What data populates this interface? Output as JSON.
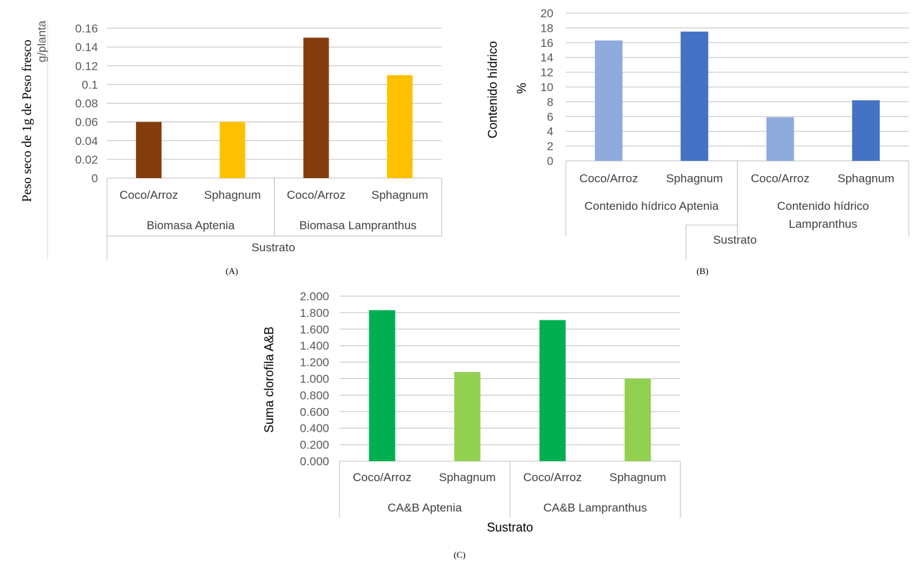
{
  "chart_data": [
    {
      "type": "bar",
      "panel_label": "(A)",
      "ylabel": "Peso seco de 1g de Peso fresco",
      "ylabel_unit": "g/planta",
      "xlabel": "Sustrato",
      "ylim": [
        0,
        0.16
      ],
      "yticks": [
        "0",
        "0.02",
        "0.04",
        "0.06",
        "0.08",
        "0.1",
        "0.12",
        "0.14",
        "0.16"
      ],
      "categories": [
        "Coco/Arroz",
        "Sphagnum",
        "Coco/Arroz",
        "Sphagnum"
      ],
      "groups": [
        "Biomasa  Aptenia",
        "Biomasa  Lampranthus"
      ],
      "values": [
        0.06,
        0.06,
        0.15,
        0.11
      ],
      "colors": [
        "#843C0C",
        "#FFC000",
        "#843C0C",
        "#FFC000"
      ],
      "grid": true,
      "legend": "none"
    },
    {
      "type": "bar",
      "panel_label": "(B)",
      "ylabel": "Contenido hídrico",
      "ylabel_unit": "%",
      "xlabel": "Sustrato",
      "ylim": [
        0,
        20
      ],
      "yticks": [
        "0",
        "2",
        "4",
        "6",
        "8",
        "10",
        "12",
        "14",
        "16",
        "18",
        "20"
      ],
      "categories": [
        "Coco/Arroz",
        "Sphagnum",
        "Coco/Arroz",
        "Sphagnum"
      ],
      "groups": [
        "Contenido hídrico  Aptenia",
        "Contenido hídrico Lampranthus"
      ],
      "values": [
        16.3,
        17.5,
        5.9,
        8.2
      ],
      "colors": [
        "#8FAADC",
        "#4472C4",
        "#8FAADC",
        "#4472C4"
      ],
      "grid": true,
      "legend": "none"
    },
    {
      "type": "bar",
      "panel_label": "(C)",
      "ylabel": "Suma clorofila A&B",
      "xlabel": "Sustrato",
      "ylim": [
        0,
        2.0
      ],
      "yticks": [
        "0.000",
        "0.200",
        "0.400",
        "0.600",
        "0.800",
        "1.000",
        "1.200",
        "1.400",
        "1.600",
        "1.800",
        "2.000"
      ],
      "categories": [
        "Coco/Arroz",
        "Sphagnum",
        "Coco/Arroz",
        "Sphagnum"
      ],
      "groups": [
        "CA&B  Aptenia",
        "CA&B  Lampranthus"
      ],
      "values": [
        1.83,
        1.08,
        1.71,
        1.0
      ],
      "colors": [
        "#00B050",
        "#92D050",
        "#00B050",
        "#92D050"
      ],
      "grid": true,
      "legend": "none"
    }
  ]
}
